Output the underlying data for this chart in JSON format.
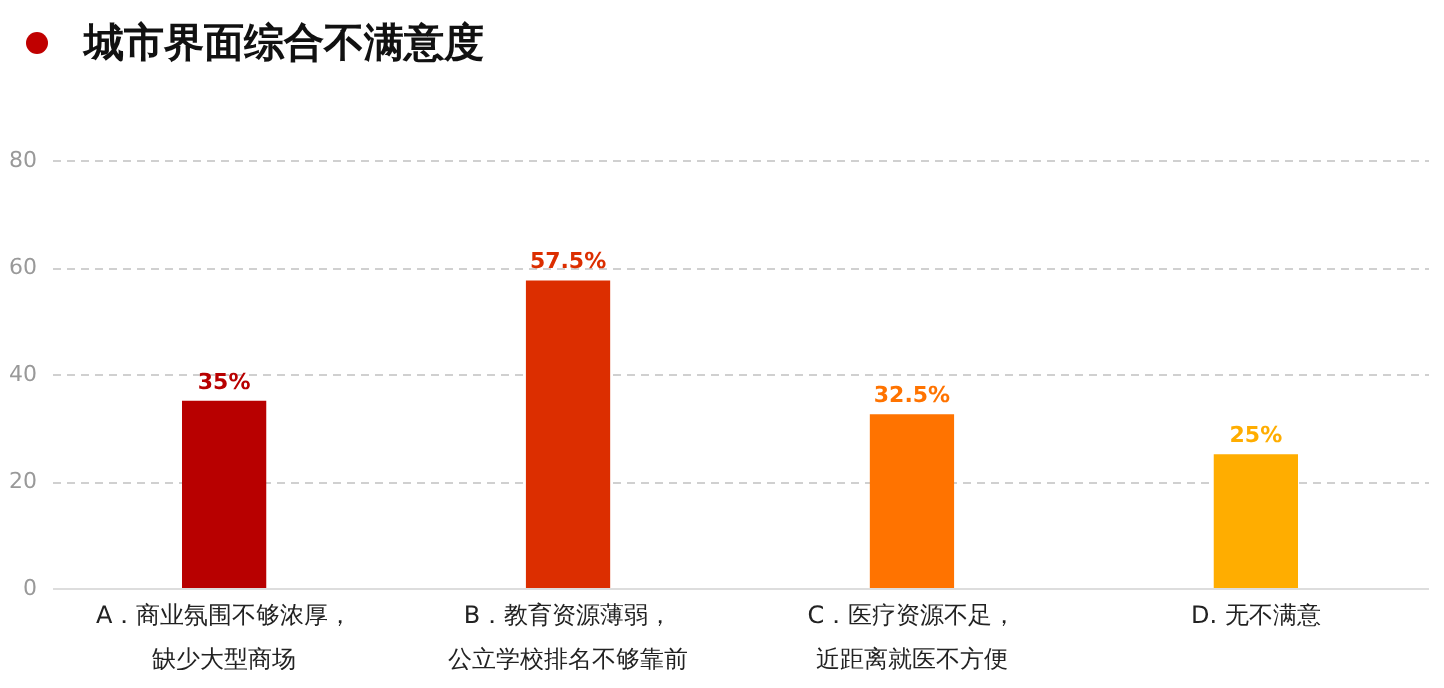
{
  "chart_data": {
    "type": "bar",
    "title": "城市界面综合不满意度",
    "categories": [
      "A．商业氛围不够浓厚，缺少大型商场",
      "B．教育资源薄弱，公立学校排名不够靠前",
      "C．医疗资源不足，近距离就医不方便",
      "D. 无不满意"
    ],
    "values": [
      35,
      57.5,
      32.5,
      25
    ],
    "colors": [
      "#b80000",
      "#dc2e00",
      "#ff7300",
      "#ffad00"
    ],
    "value_labels": [
      "35%",
      "57.5%",
      "32.5%",
      "25%"
    ],
    "ylim": [
      0,
      80
    ],
    "yticks": [
      0,
      20,
      40,
      60,
      80
    ],
    "grid": "y"
  }
}
